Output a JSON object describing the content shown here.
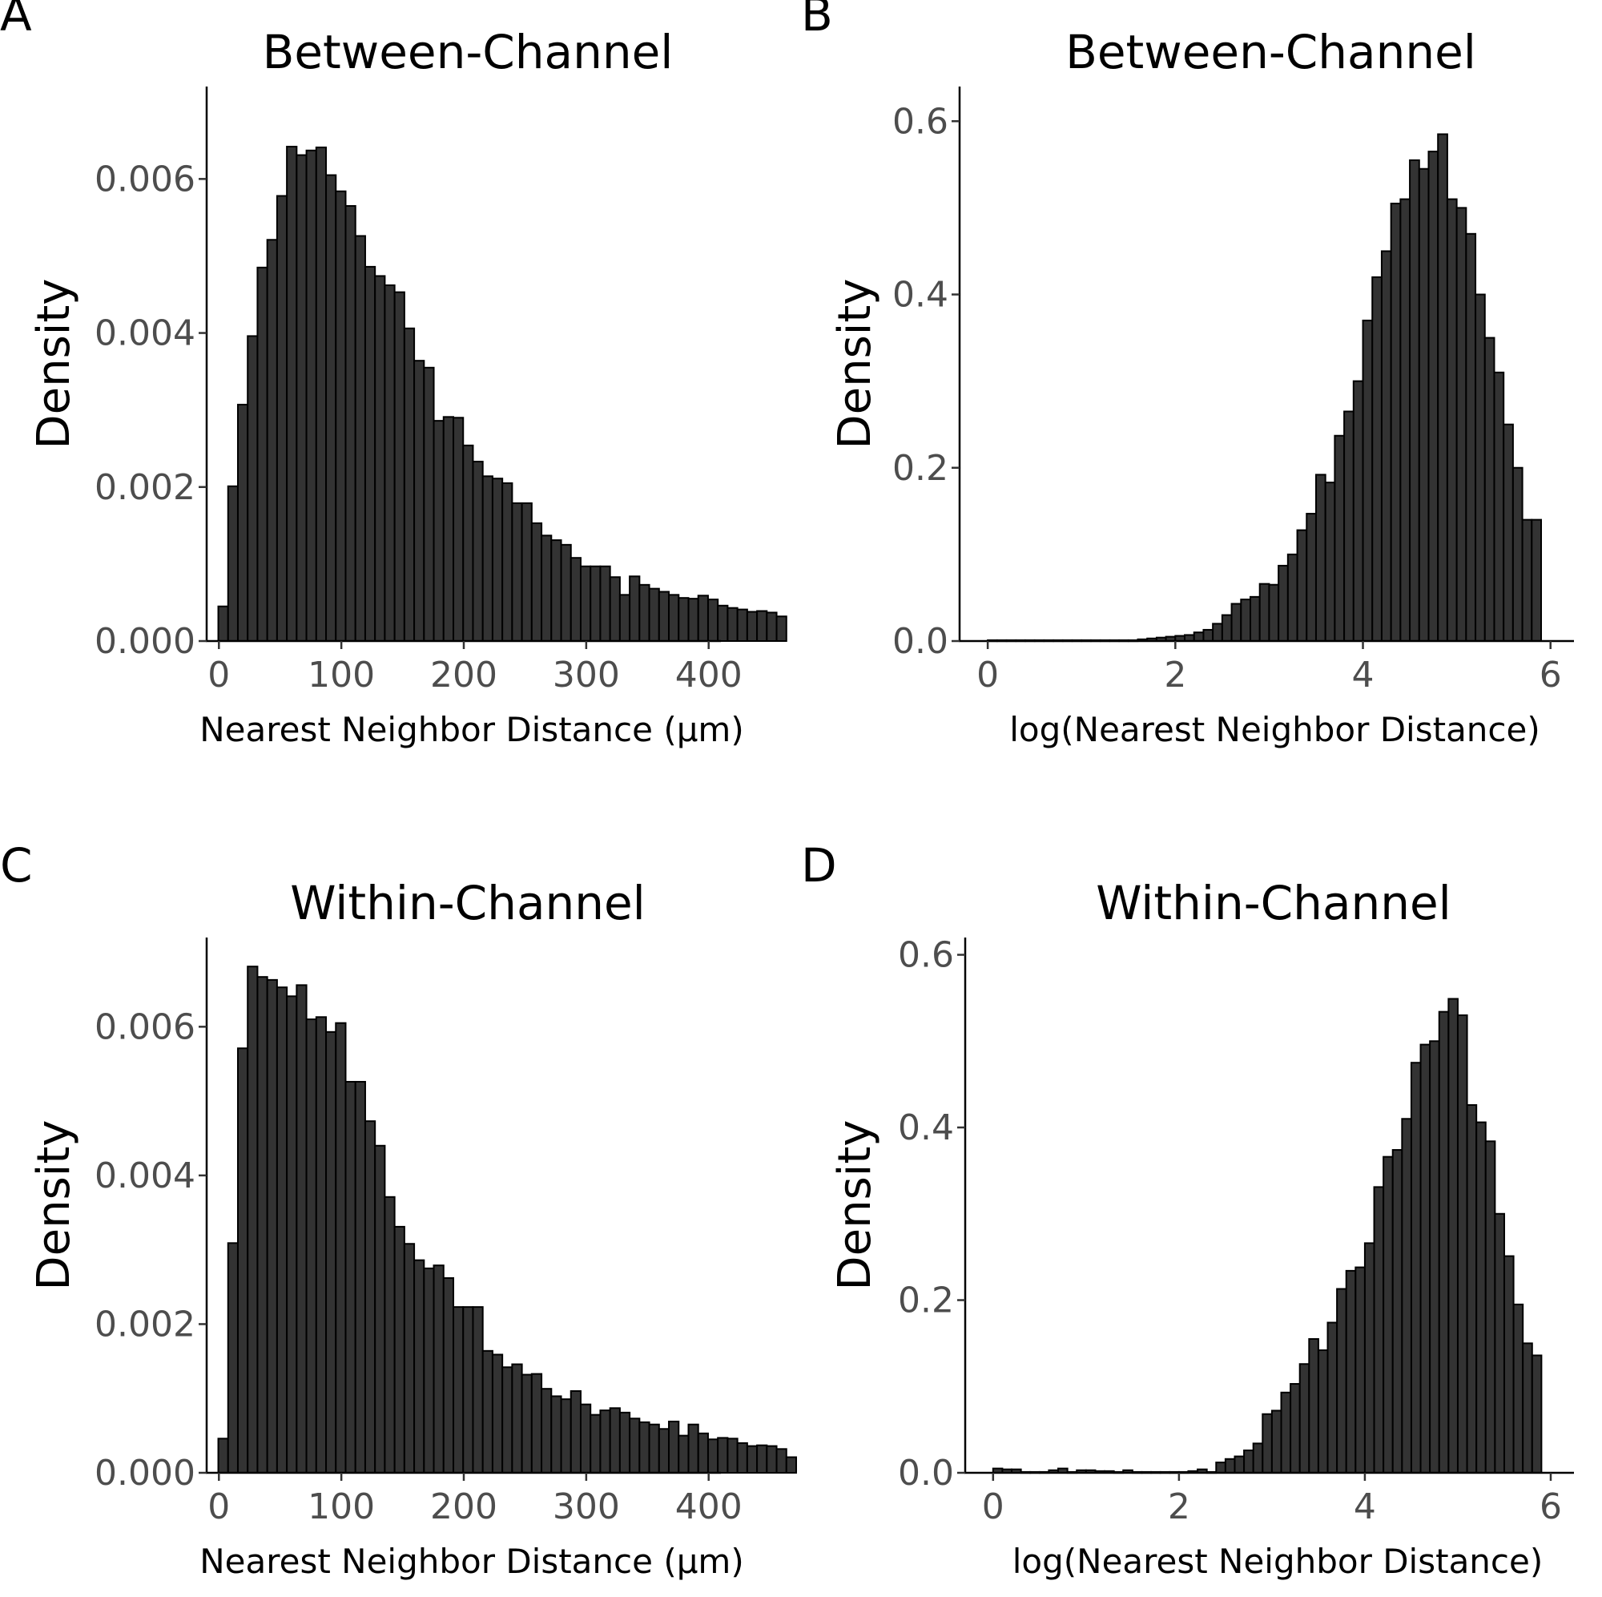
{
  "chart_data": [
    {
      "panel": "A",
      "type": "bar",
      "title": "Between-Channel",
      "xlabel": "Nearest Neighbor Distance (μm)",
      "ylabel": "Density",
      "xlim": [
        -10,
        410
      ],
      "ylim": [
        0,
        0.0072
      ],
      "xticks": [
        0,
        100,
        200,
        300,
        400
      ],
      "xtick_labels": [
        "0",
        "100",
        "200",
        "300",
        "400"
      ],
      "yticks": [
        0,
        0.002,
        0.004,
        0.006
      ],
      "ytick_labels": [
        "0.000",
        "0.002",
        "0.004",
        "0.006"
      ],
      "bin_start": 3.5,
      "bin_width": 8,
      "values": [
        0.00045,
        0.00201,
        0.00307,
        0.00396,
        0.00485,
        0.00521,
        0.00578,
        0.00642,
        0.00631,
        0.00637,
        0.00641,
        0.00605,
        0.00584,
        0.00565,
        0.00526,
        0.00486,
        0.00474,
        0.00462,
        0.00453,
        0.00406,
        0.00364,
        0.00355,
        0.00286,
        0.00291,
        0.0029,
        0.00254,
        0.00233,
        0.00214,
        0.00211,
        0.00205,
        0.00179,
        0.00179,
        0.00153,
        0.00137,
        0.00131,
        0.00125,
        0.00108,
        0.00097,
        0.00097,
        0.00097,
        0.00083,
        0.0006,
        0.00084,
        0.00073,
        0.00068,
        0.00064,
        0.0006,
        0.00056,
        0.00055,
        0.00059,
        0.00054,
        0.00046,
        0.00043,
        0.00041,
        0.00038,
        0.00039,
        0.00037,
        0.00032
      ]
    },
    {
      "panel": "B",
      "type": "bar",
      "title": "Between-Channel",
      "xlabel": "log(Nearest Neighbor Distance)",
      "ylabel": "Density",
      "xlim": [
        -0.3,
        6.25
      ],
      "ylim": [
        0,
        0.64
      ],
      "xticks": [
        0,
        2,
        4,
        6
      ],
      "xtick_labels": [
        "0",
        "2",
        "4",
        "6"
      ],
      "yticks": [
        0,
        0.2,
        0.4,
        0.6
      ],
      "ytick_labels": [
        "0.0",
        "0.2",
        "0.4",
        "0.6"
      ],
      "bin_start": 0.05,
      "bin_width": 0.1,
      "values": [
        0.001,
        0.001,
        0.001,
        0.001,
        0.001,
        0.001,
        0.001,
        0.001,
        0.001,
        0.001,
        0.001,
        0.001,
        0.001,
        0.001,
        0.001,
        0.001,
        0.002,
        0.003,
        0.004,
        0.005,
        0.006,
        0.007,
        0.01,
        0.013,
        0.02,
        0.03,
        0.043,
        0.048,
        0.051,
        0.066,
        0.065,
        0.087,
        0.1,
        0.128,
        0.147,
        0.192,
        0.183,
        0.237,
        0.265,
        0.3,
        0.37,
        0.42,
        0.45,
        0.505,
        0.51,
        0.555,
        0.545,
        0.565,
        0.585,
        0.51,
        0.5,
        0.47,
        0.4,
        0.35,
        0.31,
        0.25,
        0.2,
        0.14,
        0.14
      ]
    },
    {
      "panel": "C",
      "type": "bar",
      "title": "Within-Channel",
      "xlabel": "Nearest Neighbor Distance (μm)",
      "ylabel": "Density",
      "xlim": [
        -10,
        410
      ],
      "ylim": [
        0,
        0.0072
      ],
      "xticks": [
        0,
        100,
        200,
        300,
        400
      ],
      "xtick_labels": [
        "0",
        "100",
        "200",
        "300",
        "400"
      ],
      "yticks": [
        0,
        0.002,
        0.004,
        0.006
      ],
      "ytick_labels": [
        "0.000",
        "0.002",
        "0.004",
        "0.006"
      ],
      "bin_start": 3.5,
      "bin_width": 8,
      "values": [
        0.00046,
        0.00309,
        0.00571,
        0.00681,
        0.00667,
        0.00663,
        0.00653,
        0.00641,
        0.00656,
        0.0061,
        0.00613,
        0.00593,
        0.00605,
        0.00526,
        0.00526,
        0.00473,
        0.0044,
        0.00371,
        0.00331,
        0.00308,
        0.00286,
        0.00275,
        0.00279,
        0.00262,
        0.00223,
        0.00223,
        0.00223,
        0.00164,
        0.00159,
        0.00142,
        0.00146,
        0.00132,
        0.00133,
        0.00113,
        0.00103,
        0.00099,
        0.0011,
        0.00092,
        0.00078,
        0.00084,
        0.00087,
        0.00081,
        0.00073,
        0.00068,
        0.00065,
        0.00059,
        0.00069,
        0.0005,
        0.00065,
        0.00053,
        0.00045,
        0.00047,
        0.00046,
        0.0004,
        0.00036,
        0.00037,
        0.00036,
        0.00032,
        0.00021
      ]
    },
    {
      "panel": "D",
      "type": "bar",
      "title": "Within-Channel",
      "xlabel": "log(Nearest Neighbor Distance)",
      "ylabel": "Density",
      "xlim": [
        -0.3,
        6.25
      ],
      "ylim": [
        0,
        0.62
      ],
      "xticks": [
        0,
        2,
        4,
        6
      ],
      "xtick_labels": [
        "0",
        "2",
        "4",
        "6"
      ],
      "yticks": [
        0,
        0.2,
        0.4,
        0.6
      ],
      "ytick_labels": [
        "0.0",
        "0.2",
        "0.4",
        "0.6"
      ],
      "bin_start": 0.05,
      "bin_width": 0.1,
      "values": [
        0.005,
        0.004,
        0.004,
        0.001,
        0.001,
        0.001,
        0.003,
        0.005,
        0.001,
        0.003,
        0.003,
        0.002,
        0.002,
        0.001,
        0.003,
        0.001,
        0.001,
        0.001,
        0.001,
        0.001,
        0.001,
        0.002,
        0.004,
        0.001,
        0.012,
        0.016,
        0.019,
        0.026,
        0.034,
        0.068,
        0.072,
        0.093,
        0.103,
        0.126,
        0.155,
        0.142,
        0.174,
        0.213,
        0.234,
        0.238,
        0.266,
        0.331,
        0.366,
        0.374,
        0.41,
        0.475,
        0.496,
        0.5,
        0.534,
        0.549,
        0.53,
        0.426,
        0.406,
        0.384,
        0.3,
        0.251,
        0.195,
        0.15,
        0.136
      ]
    }
  ]
}
